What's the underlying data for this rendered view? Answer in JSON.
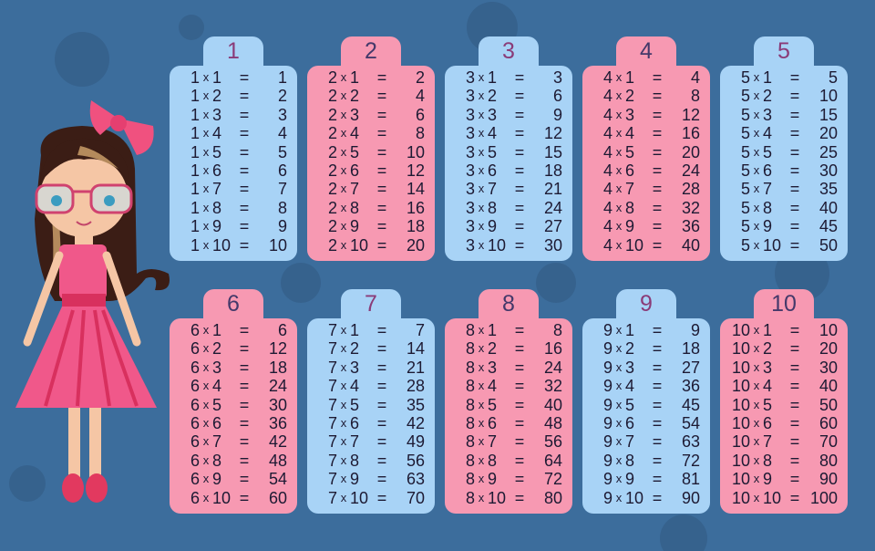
{
  "colors": {
    "background": "#3c6d9c",
    "blue_card": "#a8d3f6",
    "pink_card": "#f799b2",
    "blue_header_text": "#8a3b78",
    "pink_header_text": "#45396a"
  },
  "tables": [
    {
      "number": "1",
      "color": "blue"
    },
    {
      "number": "2",
      "color": "pink"
    },
    {
      "number": "3",
      "color": "blue"
    },
    {
      "number": "4",
      "color": "pink"
    },
    {
      "number": "5",
      "color": "blue"
    },
    {
      "number": "6",
      "color": "pink"
    },
    {
      "number": "7",
      "color": "blue"
    },
    {
      "number": "8",
      "color": "pink"
    },
    {
      "number": "9",
      "color": "blue"
    },
    {
      "number": "10",
      "color": "pink"
    }
  ],
  "rows": {
    "1": [
      [
        "1",
        "1",
        "1"
      ],
      [
        "1",
        "2",
        "2"
      ],
      [
        "1",
        "3",
        "3"
      ],
      [
        "1",
        "4",
        "4"
      ],
      [
        "1",
        "5",
        "5"
      ],
      [
        "1",
        "6",
        "6"
      ],
      [
        "1",
        "7",
        "7"
      ],
      [
        "1",
        "8",
        "8"
      ],
      [
        "1",
        "9",
        "9"
      ],
      [
        "1",
        "10",
        "10"
      ]
    ],
    "2": [
      [
        "2",
        "1",
        "2"
      ],
      [
        "2",
        "2",
        "4"
      ],
      [
        "2",
        "3",
        "6"
      ],
      [
        "2",
        "4",
        "8"
      ],
      [
        "2",
        "5",
        "10"
      ],
      [
        "2",
        "6",
        "12"
      ],
      [
        "2",
        "7",
        "14"
      ],
      [
        "2",
        "8",
        "16"
      ],
      [
        "2",
        "9",
        "18"
      ],
      [
        "2",
        "10",
        "20"
      ]
    ],
    "3": [
      [
        "3",
        "1",
        "3"
      ],
      [
        "3",
        "2",
        "6"
      ],
      [
        "3",
        "3",
        "9"
      ],
      [
        "3",
        "4",
        "12"
      ],
      [
        "3",
        "5",
        "15"
      ],
      [
        "3",
        "6",
        "18"
      ],
      [
        "3",
        "7",
        "21"
      ],
      [
        "3",
        "8",
        "24"
      ],
      [
        "3",
        "9",
        "27"
      ],
      [
        "3",
        "10",
        "30"
      ]
    ],
    "4": [
      [
        "4",
        "1",
        "4"
      ],
      [
        "4",
        "2",
        "8"
      ],
      [
        "4",
        "3",
        "12"
      ],
      [
        "4",
        "4",
        "16"
      ],
      [
        "4",
        "5",
        "20"
      ],
      [
        "4",
        "6",
        "24"
      ],
      [
        "4",
        "7",
        "28"
      ],
      [
        "4",
        "8",
        "32"
      ],
      [
        "4",
        "9",
        "36"
      ],
      [
        "4",
        "10",
        "40"
      ]
    ],
    "5": [
      [
        "5",
        "1",
        "5"
      ],
      [
        "5",
        "2",
        "10"
      ],
      [
        "5",
        "3",
        "15"
      ],
      [
        "5",
        "4",
        "20"
      ],
      [
        "5",
        "5",
        "25"
      ],
      [
        "5",
        "6",
        "30"
      ],
      [
        "5",
        "7",
        "35"
      ],
      [
        "5",
        "8",
        "40"
      ],
      [
        "5",
        "9",
        "45"
      ],
      [
        "5",
        "10",
        "50"
      ]
    ],
    "6": [
      [
        "6",
        "1",
        "6"
      ],
      [
        "6",
        "2",
        "12"
      ],
      [
        "6",
        "3",
        "18"
      ],
      [
        "6",
        "4",
        "24"
      ],
      [
        "6",
        "5",
        "30"
      ],
      [
        "6",
        "6",
        "36"
      ],
      [
        "6",
        "7",
        "42"
      ],
      [
        "6",
        "8",
        "48"
      ],
      [
        "6",
        "9",
        "54"
      ],
      [
        "6",
        "10",
        "60"
      ]
    ],
    "7": [
      [
        "7",
        "1",
        "7"
      ],
      [
        "7",
        "2",
        "14"
      ],
      [
        "7",
        "3",
        "21"
      ],
      [
        "7",
        "4",
        "28"
      ],
      [
        "7",
        "5",
        "35"
      ],
      [
        "7",
        "6",
        "42"
      ],
      [
        "7",
        "7",
        "49"
      ],
      [
        "7",
        "8",
        "56"
      ],
      [
        "7",
        "9",
        "63"
      ],
      [
        "7",
        "10",
        "70"
      ]
    ],
    "8": [
      [
        "8",
        "1",
        "8"
      ],
      [
        "8",
        "2",
        "16"
      ],
      [
        "8",
        "3",
        "24"
      ],
      [
        "8",
        "4",
        "32"
      ],
      [
        "8",
        "5",
        "40"
      ],
      [
        "8",
        "6",
        "48"
      ],
      [
        "8",
        "7",
        "56"
      ],
      [
        "8",
        "8",
        "64"
      ],
      [
        "8",
        "9",
        "72"
      ],
      [
        "8",
        "10",
        "80"
      ]
    ],
    "9": [
      [
        "9",
        "1",
        "9"
      ],
      [
        "9",
        "2",
        "18"
      ],
      [
        "9",
        "3",
        "27"
      ],
      [
        "9",
        "4",
        "36"
      ],
      [
        "9",
        "5",
        "45"
      ],
      [
        "9",
        "6",
        "54"
      ],
      [
        "9",
        "7",
        "63"
      ],
      [
        "9",
        "8",
        "72"
      ],
      [
        "9",
        "9",
        "81"
      ],
      [
        "9",
        "10",
        "90"
      ]
    ],
    "10": [
      [
        "10",
        "1",
        "10"
      ],
      [
        "10",
        "2",
        "20"
      ],
      [
        "10",
        "3",
        "30"
      ],
      [
        "10",
        "4",
        "40"
      ],
      [
        "10",
        "5",
        "50"
      ],
      [
        "10",
        "6",
        "60"
      ],
      [
        "10",
        "7",
        "70"
      ],
      [
        "10",
        "8",
        "80"
      ],
      [
        "10",
        "9",
        "90"
      ],
      [
        "10",
        "10",
        "100"
      ]
    ]
  },
  "symbols": {
    "times": "x",
    "equals": "="
  },
  "illustration": {
    "subject": "girl-with-glasses-and-pink-dress"
  }
}
